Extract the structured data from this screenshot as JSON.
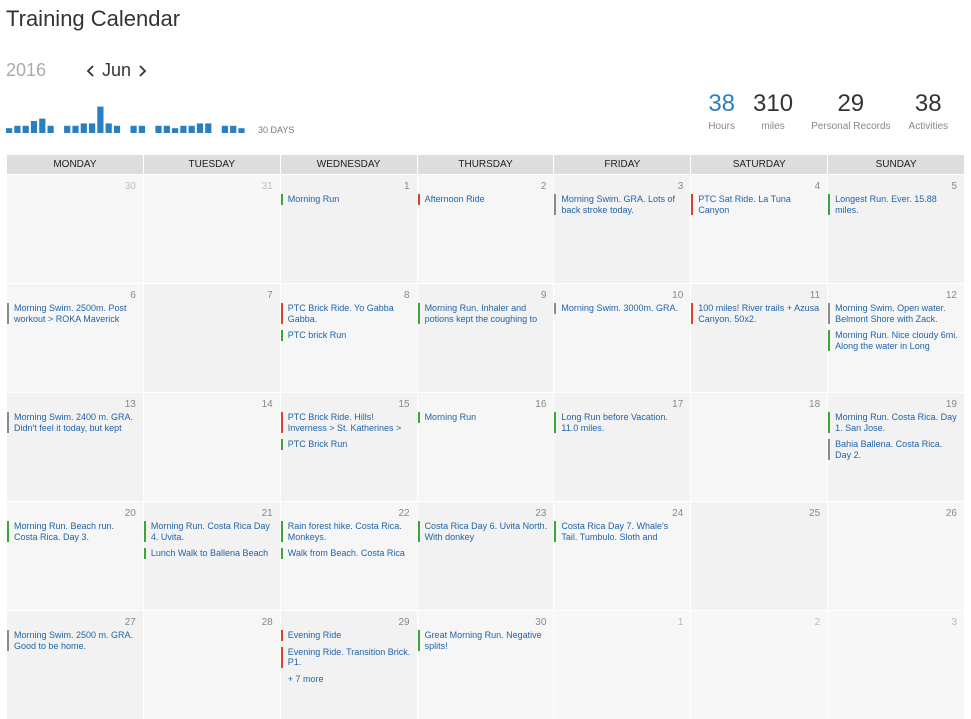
{
  "header": {
    "title": "Training Calendar"
  },
  "nav": {
    "year": "2016",
    "month": "Jun"
  },
  "activity_chart": {
    "label": "30 DAYS",
    "color": "#2a7fc1",
    "values": [
      2,
      3,
      3,
      5,
      6,
      3,
      0,
      3,
      3,
      4,
      4,
      11,
      4,
      3,
      0,
      3,
      3,
      0,
      3,
      3,
      2,
      3,
      3,
      4,
      4,
      0,
      3,
      3,
      2,
      0
    ]
  },
  "stats": [
    {
      "value": 38,
      "label": "Hours"
    },
    {
      "value": 310,
      "label": "miles"
    },
    {
      "value": 29,
      "label": "Personal Records"
    },
    {
      "value": 38,
      "label": "Activities"
    }
  ],
  "calendar": {
    "weekdays": [
      "MONDAY",
      "TUESDAY",
      "WEDNESDAY",
      "THURSDAY",
      "FRIDAY",
      "SATURDAY",
      "SUNDAY"
    ],
    "weeks": [
      [
        {
          "day": 30,
          "events": []
        },
        {
          "day": 31,
          "events": []
        },
        {
          "day": 1,
          "events": [
            {
              "text": "Morning Run",
              "color": "#3aa635"
            }
          ]
        },
        {
          "day": 2,
          "events": [
            {
              "text": "Afternoon Ride",
              "color": "#d9412b"
            }
          ]
        },
        {
          "day": 3,
          "events": [
            {
              "text": "Morning Swim. GRA. Lots of back stroke today.",
              "color": "#8a8a8a"
            }
          ]
        },
        {
          "day": 4,
          "events": [
            {
              "text": "PTC Sat Ride. La Tuna Canyon",
              "color": "#d9412b"
            }
          ]
        },
        {
          "day": 5,
          "events": [
            {
              "text": "Longest Run. Ever. 15.88 miles.",
              "color": "#3aa635"
            }
          ]
        }
      ],
      [
        {
          "day": 6,
          "events": [
            {
              "text": "Morning Swim. 2500m. Post workout > ROKA Maverick",
              "color": "#8a8a8a"
            }
          ]
        },
        {
          "day": 7,
          "events": []
        },
        {
          "day": 8,
          "events": [
            {
              "text": "PTC Brick Ride. Yo Gabba Gabba.",
              "color": "#d9412b"
            },
            {
              "text": "PTC brick Run",
              "color": "#3aa635"
            }
          ]
        },
        {
          "day": 9,
          "events": [
            {
              "text": "Morning Run. Inhaler and potions kept the coughing to",
              "color": "#3aa635"
            }
          ]
        },
        {
          "day": 10,
          "events": [
            {
              "text": "Morning Swim. 3000m. GRA.",
              "color": "#8a8a8a"
            }
          ]
        },
        {
          "day": 11,
          "events": [
            {
              "text": "100 miles! River trails + Azusa Canyon. 50x2.",
              "color": "#d9412b"
            }
          ]
        },
        {
          "day": 12,
          "events": [
            {
              "text": "Morning Swim. Open water. Belmont Shore with Zack.",
              "color": "#8a8a8a"
            },
            {
              "text": "Morning Run. Nice cloudy 6mi. Along the water in Long",
              "color": "#3aa635"
            }
          ]
        }
      ],
      [
        {
          "day": 13,
          "events": [
            {
              "text": "Morning Swim. 2400 m. GRA. Didn't feel it today, but kept",
              "color": "#8a8a8a"
            }
          ]
        },
        {
          "day": 14,
          "events": []
        },
        {
          "day": 15,
          "events": [
            {
              "text": "PTC Brick Ride. Hills! Inverness > St. Katherines >",
              "color": "#d9412b"
            },
            {
              "text": "PTC Brick Run",
              "color": "#3aa635"
            }
          ]
        },
        {
          "day": 16,
          "events": [
            {
              "text": "Morning Run",
              "color": "#3aa635"
            }
          ]
        },
        {
          "day": 17,
          "events": [
            {
              "text": "Long Run before Vacation. 11.0 miles.",
              "color": "#3aa635"
            }
          ]
        },
        {
          "day": 18,
          "events": []
        },
        {
          "day": 19,
          "events": [
            {
              "text": "Morning Run. Costa Rica. Day 1. San Jose.",
              "color": "#3aa635"
            },
            {
              "text": "Bahia Ballena. Costa Rica. Day 2.",
              "color": "#8a8a8a"
            }
          ]
        }
      ],
      [
        {
          "day": 20,
          "events": [
            {
              "text": "Morning Run. Beach run. Costa Rica. Day 3.",
              "color": "#3aa635"
            }
          ]
        },
        {
          "day": 21,
          "events": [
            {
              "text": "Morning Run. Costa Rica Day 4. Uvita.",
              "color": "#3aa635"
            },
            {
              "text": "Lunch Walk to Ballena Beach",
              "color": "#3aa635"
            }
          ]
        },
        {
          "day": 22,
          "events": [
            {
              "text": "Rain forest hike. Costa Rica. Monkeys.",
              "color": "#3aa635"
            },
            {
              "text": "Walk from Beach. Costa Rica",
              "color": "#3aa635"
            }
          ]
        },
        {
          "day": 23,
          "events": [
            {
              "text": "Costa Rica Day 6. Uvita North. With donkey",
              "color": "#3aa635"
            }
          ]
        },
        {
          "day": 24,
          "events": [
            {
              "text": "Costa Rica Day 7. Whale's Tail. Tumbulo. Sloth and",
              "color": "#3aa635"
            }
          ]
        },
        {
          "day": 25,
          "events": []
        },
        {
          "day": 26,
          "events": []
        }
      ],
      [
        {
          "day": 27,
          "events": [
            {
              "text": "Morning Swim. 2500 m. GRA. Good to be home.",
              "color": "#8a8a8a"
            }
          ]
        },
        {
          "day": 28,
          "events": []
        },
        {
          "day": 29,
          "events": [
            {
              "text": "Evening Ride",
              "color": "#d9412b"
            },
            {
              "text": "Evening Ride. Transition Brick. P1.",
              "color": "#d9412b"
            }
          ],
          "more": "+ 7 more"
        },
        {
          "day": 30,
          "events": [
            {
              "text": "Great Morning Run. Negative splits!",
              "color": "#3aa635"
            }
          ]
        },
        {
          "day": 1,
          "events": []
        },
        {
          "day": 2,
          "events": []
        },
        {
          "day": 3,
          "events": []
        }
      ]
    ]
  }
}
